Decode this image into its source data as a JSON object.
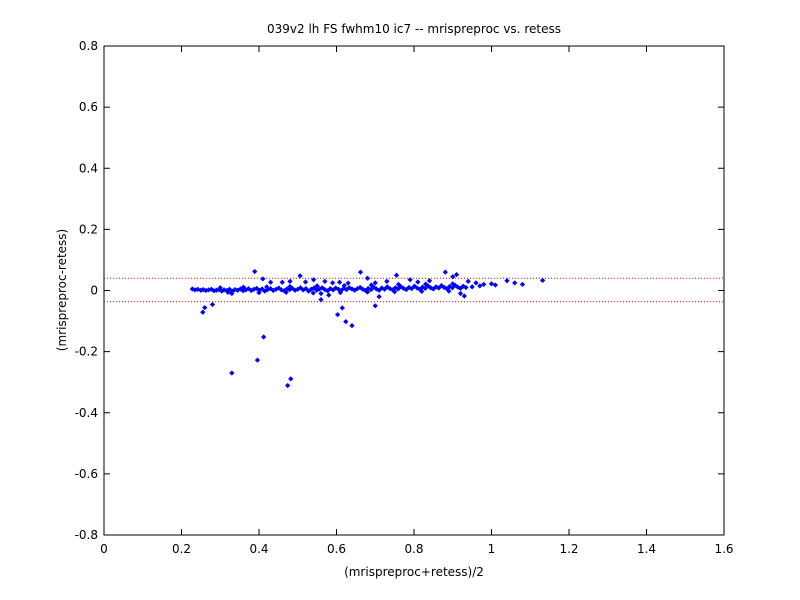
{
  "chart_data": {
    "type": "scatter",
    "title": "039v2 lh FS fwhm10 ic7 -- mrispreproc vs. retess",
    "xlabel": "(mrispreproc+retess)/2",
    "ylabel": "(mrispreproc-retess)",
    "xlim": [
      0,
      1.6
    ],
    "ylim": [
      -0.8,
      0.8
    ],
    "xticks": [
      0,
      0.2,
      0.4,
      0.6,
      0.8,
      1,
      1.2,
      1.4,
      1.6
    ],
    "xtick_labels": [
      "0",
      "0.2",
      "0.4",
      "0.6",
      "0.8",
      "1",
      "1.2",
      "1.4",
      "1.6"
    ],
    "yticks": [
      -0.8,
      -0.6,
      -0.4,
      -0.2,
      0,
      0.2,
      0.4,
      0.6,
      0.8
    ],
    "ytick_labels": [
      "-0.8",
      "-0.6",
      "-0.4",
      "-0.2",
      "0",
      "0.2",
      "0.4",
      "0.6",
      "0.8"
    ],
    "grid": false,
    "marker_color": "#0000ff",
    "reference_line_color": "#ff0000",
    "reference_lines_y": [
      0.04,
      -0.037
    ],
    "series": [
      {
        "values": [
          [
            0.228,
            0.005
          ],
          [
            0.235,
            0.002
          ],
          [
            0.242,
            0.004
          ],
          [
            0.25,
            0.001
          ],
          [
            0.256,
            0.003
          ],
          [
            0.263,
            0.0
          ],
          [
            0.27,
            0.002
          ],
          [
            0.277,
            0.004
          ],
          [
            0.284,
            -0.001
          ],
          [
            0.29,
            0.001
          ],
          [
            0.297,
            0.003
          ],
          [
            0.304,
            -0.002
          ],
          [
            0.31,
            0.002
          ],
          [
            0.317,
            0.0
          ],
          [
            0.324,
            0.004
          ],
          [
            0.331,
            -0.002
          ],
          [
            0.338,
            0.003
          ],
          [
            0.345,
            0.001
          ],
          [
            0.352,
            0.005
          ],
          [
            0.359,
            -0.001
          ],
          [
            0.366,
            0.002
          ],
          [
            0.373,
            0.006
          ],
          [
            0.38,
            0.0
          ],
          [
            0.387,
            0.004
          ],
          [
            0.394,
            0.007
          ],
          [
            0.401,
            0.001
          ],
          [
            0.408,
            0.005
          ],
          [
            0.415,
            -0.002
          ],
          [
            0.422,
            0.003
          ],
          [
            0.43,
            0.006
          ],
          [
            0.437,
            0.0
          ],
          [
            0.444,
            0.004
          ],
          [
            0.451,
            0.008
          ],
          [
            0.458,
            0.002
          ],
          [
            0.465,
            -0.001
          ],
          [
            0.472,
            0.005
          ],
          [
            0.479,
            0.003
          ],
          [
            0.486,
            0.007
          ],
          [
            0.493,
            0.001
          ],
          [
            0.5,
            0.004
          ],
          [
            0.507,
            0.009
          ],
          [
            0.514,
            0.002
          ],
          [
            0.521,
            0.006
          ],
          [
            0.528,
            -0.002
          ],
          [
            0.535,
            0.004
          ],
          [
            0.542,
            0.008
          ],
          [
            0.549,
            0.001
          ],
          [
            0.556,
            0.005
          ],
          [
            0.563,
            0.009
          ],
          [
            0.57,
            0.003
          ],
          [
            0.577,
            -0.001
          ],
          [
            0.584,
            0.006
          ],
          [
            0.591,
            0.002
          ],
          [
            0.598,
            0.008
          ],
          [
            0.605,
            0.004
          ],
          [
            0.612,
            0.0
          ],
          [
            0.619,
            0.007
          ],
          [
            0.626,
            0.003
          ],
          [
            0.633,
            0.009
          ],
          [
            0.64,
            0.005
          ],
          [
            0.647,
            0.001
          ],
          [
            0.654,
            0.006
          ],
          [
            0.661,
            0.01
          ],
          [
            0.668,
            0.004
          ],
          [
            0.675,
            0.0
          ],
          [
            0.682,
            0.007
          ],
          [
            0.689,
            0.003
          ],
          [
            0.696,
            0.011
          ],
          [
            0.703,
            0.005
          ],
          [
            0.71,
            0.001
          ],
          [
            0.717,
            0.008
          ],
          [
            0.724,
            0.004
          ],
          [
            0.731,
            0.012
          ],
          [
            0.738,
            0.006
          ],
          [
            0.745,
            0.002
          ],
          [
            0.752,
            0.009
          ],
          [
            0.759,
            0.005
          ],
          [
            0.766,
            0.013
          ],
          [
            0.773,
            0.007
          ],
          [
            0.78,
            0.003
          ],
          [
            0.787,
            0.01
          ],
          [
            0.794,
            0.006
          ],
          [
            0.801,
            0.014
          ],
          [
            0.808,
            0.008
          ],
          [
            0.815,
            0.004
          ],
          [
            0.822,
            0.011
          ],
          [
            0.829,
            0.007
          ],
          [
            0.836,
            0.015
          ],
          [
            0.843,
            0.009
          ],
          [
            0.85,
            0.005
          ],
          [
            0.857,
            0.012
          ],
          [
            0.864,
            0.008
          ],
          [
            0.871,
            0.016
          ],
          [
            0.878,
            0.01
          ],
          [
            0.885,
            0.006
          ],
          [
            0.892,
            0.013
          ],
          [
            0.899,
            0.009
          ],
          [
            0.906,
            0.017
          ],
          [
            0.913,
            0.011
          ],
          [
            0.92,
            0.007
          ],
          [
            0.927,
            0.014
          ],
          [
            0.934,
            0.01
          ],
          [
            0.3,
            0.009
          ],
          [
            0.36,
            0.011
          ],
          [
            0.42,
            0.012
          ],
          [
            0.48,
            0.013
          ],
          [
            0.55,
            0.015
          ],
          [
            0.62,
            0.016
          ],
          [
            0.69,
            0.018
          ],
          [
            0.76,
            0.02
          ],
          [
            0.83,
            0.021
          ],
          [
            0.9,
            0.022
          ],
          [
            0.32,
            -0.006
          ],
          [
            0.4,
            -0.007
          ],
          [
            0.47,
            -0.006
          ],
          [
            0.54,
            -0.008
          ],
          [
            0.61,
            -0.007
          ],
          [
            0.68,
            -0.005
          ],
          [
            0.75,
            -0.004
          ],
          [
            0.82,
            -0.003
          ],
          [
            0.89,
            -0.002
          ],
          [
            0.389,
            0.062
          ],
          [
            0.41,
            0.038
          ],
          [
            0.43,
            0.027
          ],
          [
            0.46,
            0.027
          ],
          [
            0.48,
            0.03
          ],
          [
            0.506,
            0.048
          ],
          [
            0.52,
            0.028
          ],
          [
            0.541,
            0.035
          ],
          [
            0.57,
            0.03
          ],
          [
            0.59,
            0.025
          ],
          [
            0.608,
            0.027
          ],
          [
            0.63,
            0.024
          ],
          [
            0.662,
            0.06
          ],
          [
            0.68,
            0.04
          ],
          [
            0.7,
            0.025
          ],
          [
            0.73,
            0.03
          ],
          [
            0.755,
            0.05
          ],
          [
            0.79,
            0.035
          ],
          [
            0.81,
            0.028
          ],
          [
            0.84,
            0.032
          ],
          [
            0.881,
            0.06
          ],
          [
            0.9,
            0.045
          ],
          [
            0.91,
            0.052
          ],
          [
            0.94,
            0.03
          ],
          [
            0.96,
            0.025
          ],
          [
            0.98,
            0.02
          ],
          [
            1.0,
            0.022
          ],
          [
            1.04,
            0.032
          ],
          [
            1.06,
            0.025
          ],
          [
            1.08,
            0.02
          ],
          [
            1.132,
            0.033
          ],
          [
            0.95,
            0.012
          ],
          [
            0.97,
            0.015
          ],
          [
            1.01,
            0.018
          ],
          [
            0.255,
            -0.071
          ],
          [
            0.26,
            -0.056
          ],
          [
            0.28,
            -0.046
          ],
          [
            0.33,
            -0.27
          ],
          [
            0.396,
            -0.228
          ],
          [
            0.412,
            -0.152
          ],
          [
            0.474,
            -0.311
          ],
          [
            0.482,
            -0.289
          ],
          [
            0.56,
            -0.03
          ],
          [
            0.603,
            -0.079
          ],
          [
            0.615,
            -0.057
          ],
          [
            0.624,
            -0.102
          ],
          [
            0.64,
            -0.115
          ],
          [
            0.7,
            -0.05
          ],
          [
            0.56,
            -0.01
          ],
          [
            0.71,
            -0.02
          ],
          [
            0.92,
            -0.01
          ],
          [
            0.93,
            -0.018
          ],
          [
            0.33,
            -0.01
          ],
          [
            0.58,
            -0.015
          ]
        ]
      }
    ]
  }
}
